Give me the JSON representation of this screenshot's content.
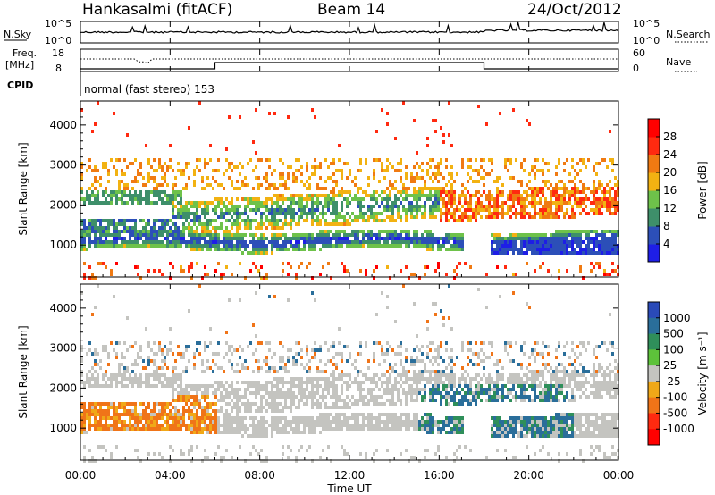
{
  "header": {
    "station": "Hankasalmi (fitACF)",
    "beam": "Beam 14",
    "date": "24/Oct/2012"
  },
  "summary_panels": {
    "nsky_label": "N.Sky",
    "nsky_ticks": [
      "10^5",
      "10^0"
    ],
    "nsearch_label": "N.Search",
    "nsearch_ticks": [
      "10^5",
      "10^0"
    ],
    "freq_label_line1": "Freq.",
    "freq_label_line2": "[MHz]",
    "freq_ticks": [
      "18",
      "8"
    ],
    "nave_label": "Nave",
    "nave_ticks": [
      "60",
      "0"
    ],
    "cpid_label": "CPID",
    "cpid_text": "normal (fast stereo) 153"
  },
  "chart_data": [
    {
      "type": "heatmap",
      "name": "power",
      "ylabel": "Slant Range [km]",
      "ylim": [
        200,
        4600
      ],
      "yticks": [
        1000,
        2000,
        3000,
        4000
      ],
      "xlim": [
        0,
        24
      ],
      "colorbar": {
        "label": "Power [dB]",
        "ticks": [
          "4",
          "8",
          "12",
          "16",
          "20",
          "24",
          "28"
        ],
        "colors": [
          "#1e1ee6",
          "#2c4fb8",
          "#3e8f6a",
          "#6ec24a",
          "#f2b212",
          "#f07a12",
          "#ff2a10",
          "#ff0000"
        ]
      }
    },
    {
      "type": "heatmap",
      "name": "velocity",
      "ylabel": "Slant Range [km]",
      "ylim": [
        200,
        4600
      ],
      "yticks": [
        1000,
        2000,
        3000,
        4000
      ],
      "xlim": [
        0,
        24
      ],
      "xlabel": "Time UT",
      "xticks": [
        "00:00",
        "04:00",
        "08:00",
        "12:00",
        "16:00",
        "20:00",
        "00:00"
      ],
      "colorbar": {
        "label": "Velocity [m s⁻¹]",
        "ticks": [
          "1000",
          "500",
          "100",
          "25",
          "-25",
          "-100",
          "-500",
          "-1000"
        ],
        "colors": [
          "#2a4ab8",
          "#2a6e9a",
          "#2f8f5a",
          "#5dc23a",
          "#c4c4c0",
          "#f0a818",
          "#f07418",
          "#ff2a10",
          "#ff0000"
        ]
      }
    }
  ]
}
